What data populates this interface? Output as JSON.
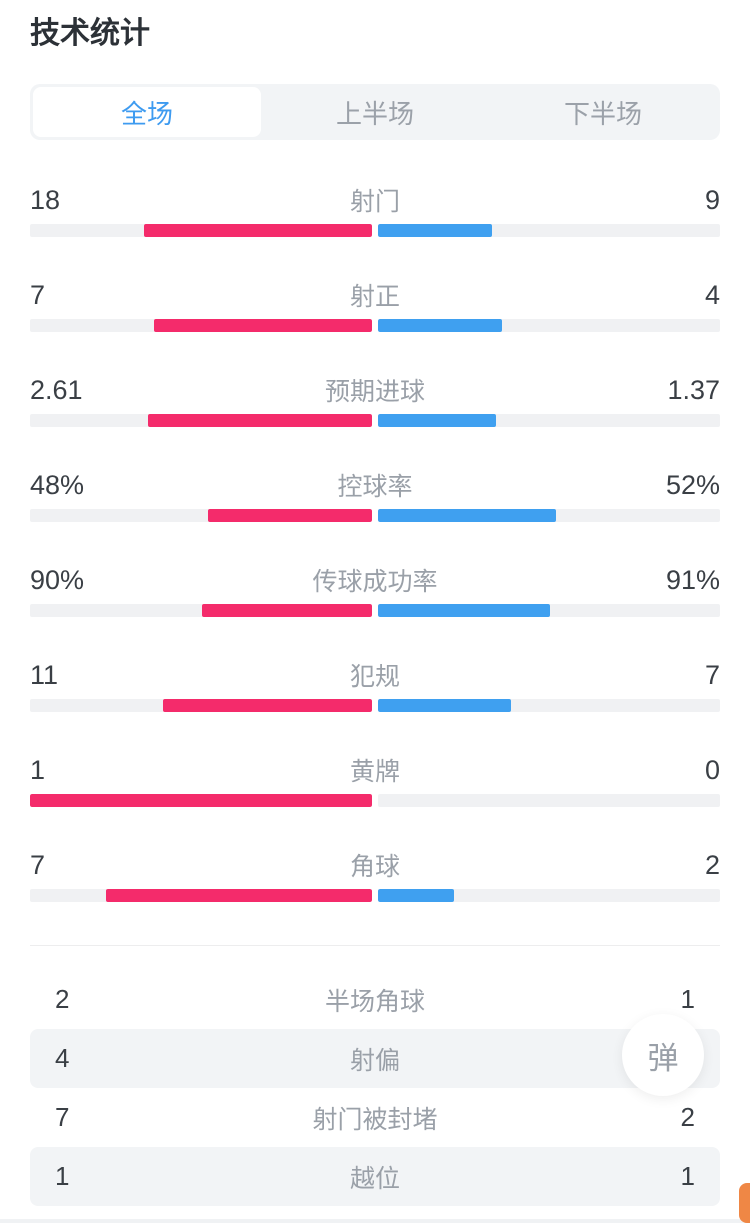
{
  "page": {
    "title": "技术统计"
  },
  "tabs": {
    "items": [
      {
        "id": "full",
        "label": "全场",
        "active": true
      },
      {
        "id": "first-half",
        "label": "上半场",
        "active": false
      },
      {
        "id": "second-half",
        "label": "下半场",
        "active": false
      }
    ]
  },
  "stats": [
    {
      "label": "射门",
      "home": "18",
      "away": "9",
      "home_value": 18,
      "away_value": 9
    },
    {
      "label": "射正",
      "home": "7",
      "away": "4",
      "home_value": 7,
      "away_value": 4
    },
    {
      "label": "预期进球",
      "home": "2.61",
      "away": "1.37",
      "home_value": 2.61,
      "away_value": 1.37
    },
    {
      "label": "控球率",
      "home": "48%",
      "away": "52%",
      "home_value": 48,
      "away_value": 52
    },
    {
      "label": "传球成功率",
      "home": "90%",
      "away": "91%",
      "home_value": 90,
      "away_value": 91
    },
    {
      "label": "犯规",
      "home": "11",
      "away": "7",
      "home_value": 11,
      "away_value": 7
    },
    {
      "label": "黄牌",
      "home": "1",
      "away": "0",
      "home_value": 1,
      "away_value": 0
    },
    {
      "label": "角球",
      "home": "7",
      "away": "2",
      "home_value": 7,
      "away_value": 2
    }
  ],
  "extra_stats": [
    {
      "label": "半场角球",
      "home": "2",
      "away": "1",
      "shaded": false
    },
    {
      "label": "射偏",
      "home": "4",
      "away": "",
      "shaded": true
    },
    {
      "label": "射门被封堵",
      "home": "7",
      "away": "2",
      "shaded": false
    },
    {
      "label": "越位",
      "home": "1",
      "away": "1",
      "shaded": true
    }
  ],
  "badge": {
    "label": "弹"
  },
  "colors": {
    "home_bar": "#f42b6b",
    "away_bar": "#3fa0f0",
    "active_tab_text": "#3e9bf0",
    "bar_track": "#f0f1f3",
    "floating_button": "#ef8745"
  }
}
